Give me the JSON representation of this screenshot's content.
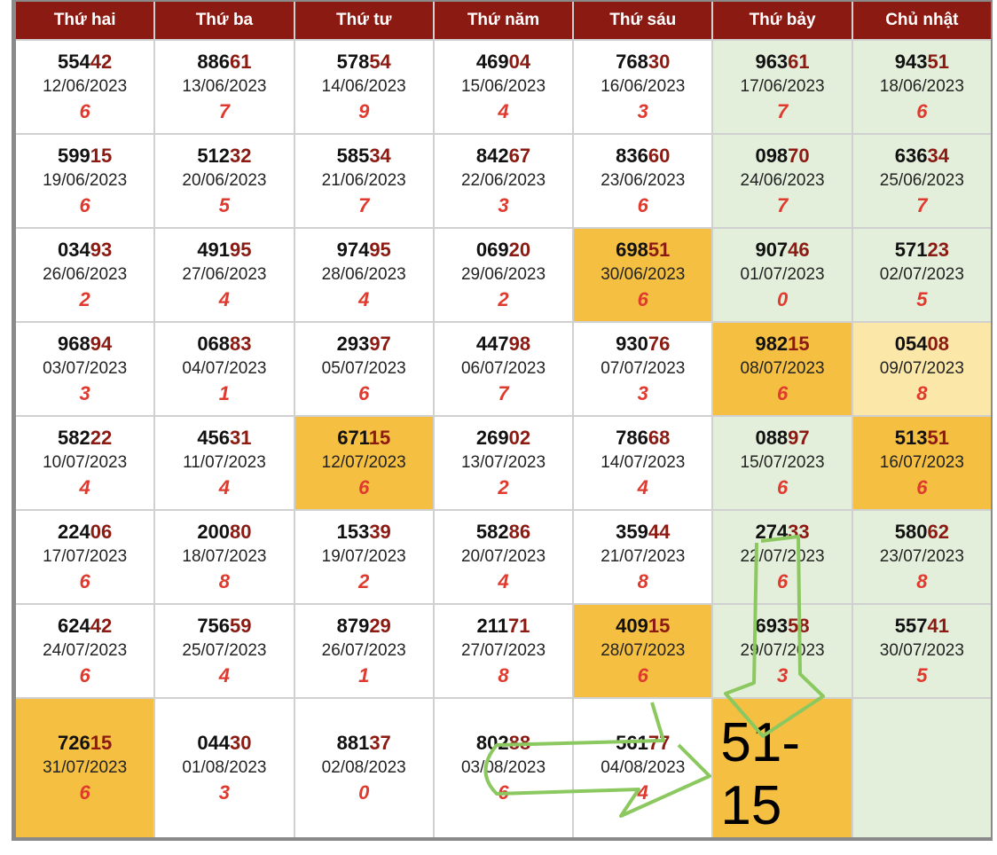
{
  "headers": [
    "Thứ hai",
    "Thứ ba",
    "Thứ tư",
    "Thứ năm",
    "Thứ sáu",
    "Thứ bảy",
    "Chủ nhật"
  ],
  "colors": {
    "header": "#8b1a12",
    "highlight": "#f5bf42",
    "light_highlight": "#fbe8a8",
    "weekend": "#e3efdb",
    "digit": "#e03a2f",
    "arrow": "#8cc860"
  },
  "rows": [
    [
      {
        "p": "554",
        "s": "42",
        "d": "12/06/2023",
        "n": "6"
      },
      {
        "p": "886",
        "s": "61",
        "d": "13/06/2023",
        "n": "7"
      },
      {
        "p": "578",
        "s": "54",
        "d": "14/06/2023",
        "n": "9"
      },
      {
        "p": "469",
        "s": "04",
        "d": "15/06/2023",
        "n": "4"
      },
      {
        "p": "768",
        "s": "30",
        "d": "16/06/2023",
        "n": "3"
      },
      {
        "p": "963",
        "s": "61",
        "d": "17/06/2023",
        "n": "7"
      },
      {
        "p": "943",
        "s": "51",
        "d": "18/06/2023",
        "n": "6"
      }
    ],
    [
      {
        "p": "599",
        "s": "15",
        "d": "19/06/2023",
        "n": "6"
      },
      {
        "p": "512",
        "s": "32",
        "d": "20/06/2023",
        "n": "5"
      },
      {
        "p": "585",
        "s": "34",
        "d": "21/06/2023",
        "n": "7"
      },
      {
        "p": "842",
        "s": "67",
        "d": "22/06/2023",
        "n": "3"
      },
      {
        "p": "836",
        "s": "60",
        "d": "23/06/2023",
        "n": "6"
      },
      {
        "p": "098",
        "s": "70",
        "d": "24/06/2023",
        "n": "7"
      },
      {
        "p": "636",
        "s": "34",
        "d": "25/06/2023",
        "n": "7"
      }
    ],
    [
      {
        "p": "034",
        "s": "93",
        "d": "26/06/2023",
        "n": "2"
      },
      {
        "p": "491",
        "s": "95",
        "d": "27/06/2023",
        "n": "4"
      },
      {
        "p": "974",
        "s": "95",
        "d": "28/06/2023",
        "n": "4"
      },
      {
        "p": "069",
        "s": "20",
        "d": "29/06/2023",
        "n": "2"
      },
      {
        "p": "698",
        "s": "51",
        "d": "30/06/2023",
        "n": "6",
        "h": "hl"
      },
      {
        "p": "907",
        "s": "46",
        "d": "01/07/2023",
        "n": "0"
      },
      {
        "p": "571",
        "s": "23",
        "d": "02/07/2023",
        "n": "5"
      }
    ],
    [
      {
        "p": "968",
        "s": "94",
        "d": "03/07/2023",
        "n": "3"
      },
      {
        "p": "068",
        "s": "83",
        "d": "04/07/2023",
        "n": "1"
      },
      {
        "p": "293",
        "s": "97",
        "d": "05/07/2023",
        "n": "6"
      },
      {
        "p": "447",
        "s": "98",
        "d": "06/07/2023",
        "n": "7"
      },
      {
        "p": "930",
        "s": "76",
        "d": "07/07/2023",
        "n": "3"
      },
      {
        "p": "982",
        "s": "15",
        "d": "08/07/2023",
        "n": "6",
        "h": "hl"
      },
      {
        "p": "054",
        "s": "08",
        "d": "09/07/2023",
        "n": "8",
        "h": "lt"
      }
    ],
    [
      {
        "p": "582",
        "s": "22",
        "d": "10/07/2023",
        "n": "4"
      },
      {
        "p": "456",
        "s": "31",
        "d": "11/07/2023",
        "n": "4"
      },
      {
        "p": "671",
        "s": "15",
        "d": "12/07/2023",
        "n": "6",
        "h": "hl"
      },
      {
        "p": "269",
        "s": "02",
        "d": "13/07/2023",
        "n": "2"
      },
      {
        "p": "786",
        "s": "68",
        "d": "14/07/2023",
        "n": "4"
      },
      {
        "p": "088",
        "s": "97",
        "d": "15/07/2023",
        "n": "6"
      },
      {
        "p": "513",
        "s": "51",
        "d": "16/07/2023",
        "n": "6",
        "h": "hl"
      }
    ],
    [
      {
        "p": "224",
        "s": "06",
        "d": "17/07/2023",
        "n": "6"
      },
      {
        "p": "200",
        "s": "80",
        "d": "18/07/2023",
        "n": "8"
      },
      {
        "p": "153",
        "s": "39",
        "d": "19/07/2023",
        "n": "2"
      },
      {
        "p": "582",
        "s": "86",
        "d": "20/07/2023",
        "n": "4"
      },
      {
        "p": "359",
        "s": "44",
        "d": "21/07/2023",
        "n": "8"
      },
      {
        "p": "274",
        "s": "33",
        "d": "22/07/2023",
        "n": "6"
      },
      {
        "p": "580",
        "s": "62",
        "d": "23/07/2023",
        "n": "8"
      }
    ],
    [
      {
        "p": "624",
        "s": "42",
        "d": "24/07/2023",
        "n": "6"
      },
      {
        "p": "756",
        "s": "59",
        "d": "25/07/2023",
        "n": "4"
      },
      {
        "p": "879",
        "s": "29",
        "d": "26/07/2023",
        "n": "1"
      },
      {
        "p": "211",
        "s": "71",
        "d": "27/07/2023",
        "n": "8"
      },
      {
        "p": "409",
        "s": "15",
        "d": "28/07/2023",
        "n": "6",
        "h": "hl"
      },
      {
        "p": "693",
        "s": "58",
        "d": "29/07/2023",
        "n": "3"
      },
      {
        "p": "557",
        "s": "41",
        "d": "30/07/2023",
        "n": "5"
      }
    ],
    [
      {
        "p": "726",
        "s": "15",
        "d": "31/07/2023",
        "n": "6",
        "h": "hl"
      },
      {
        "p": "044",
        "s": "30",
        "d": "01/08/2023",
        "n": "3"
      },
      {
        "p": "881",
        "s": "37",
        "d": "02/08/2023",
        "n": "0"
      },
      {
        "p": "802",
        "s": "88",
        "d": "03/08/2023",
        "n": "6"
      },
      {
        "p": "561",
        "s": "77",
        "d": "04/08/2023",
        "n": "4"
      }
    ]
  ],
  "prediction": "51-15"
}
